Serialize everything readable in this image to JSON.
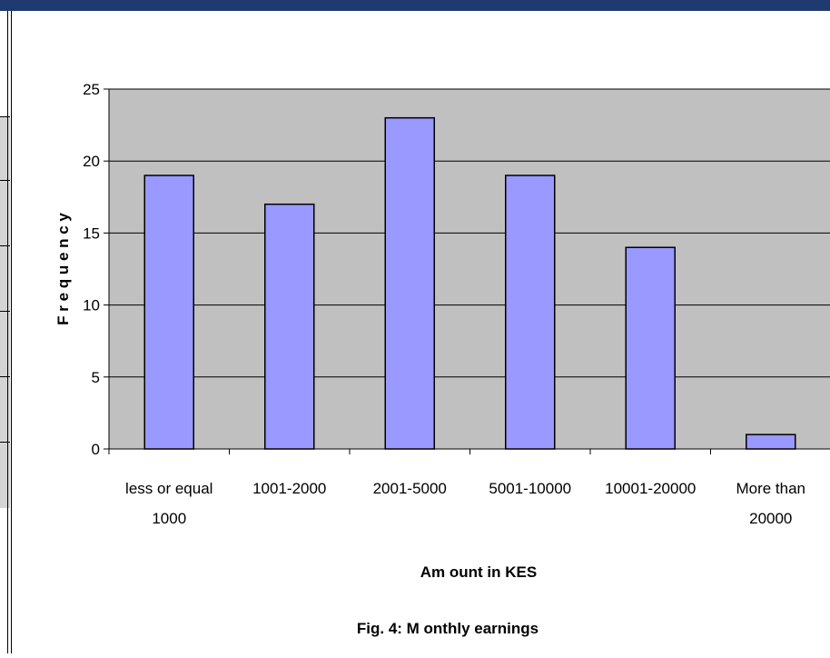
{
  "colors": {
    "plot_bg": "#c0c0c0",
    "bar_fill": "#9999ff",
    "bar_stroke": "#000000",
    "frame_bar": "#1f3a70"
  },
  "chart_data": {
    "type": "bar",
    "categories": [
      [
        "less or equal",
        "1000"
      ],
      [
        "1001-2000"
      ],
      [
        "2001-5000"
      ],
      [
        "5001-10000"
      ],
      [
        "10001-20000"
      ],
      [
        "More than",
        "20000"
      ]
    ],
    "values": [
      19,
      17,
      23,
      19,
      14,
      1
    ],
    "ylim": [
      0,
      25
    ],
    "yticks": [
      0,
      5,
      10,
      15,
      20,
      25
    ],
    "xlabel": "Am ount in KES",
    "ylabel": "F r e q u e n c y",
    "grid": true,
    "legend": "none"
  },
  "caption": "Fig. 4: M onthly earnings"
}
